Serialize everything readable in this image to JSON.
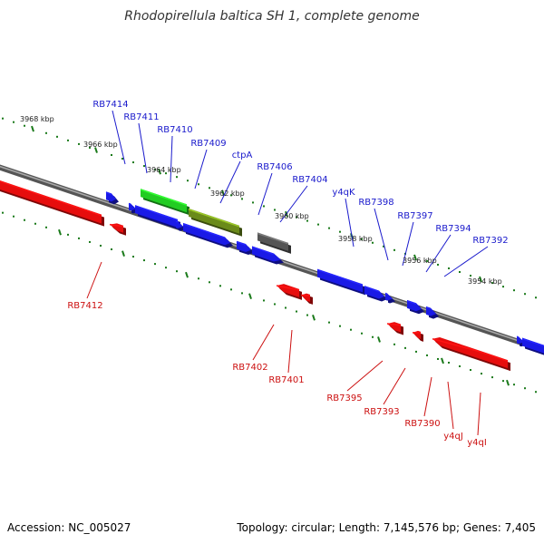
{
  "title": "Rhodopirellula baltica SH 1, complete genome",
  "footer": {
    "accession": "Accession: NC_005027",
    "summary": "Topology: circular; Length: 7,145,576 bp; Genes: 7,405"
  },
  "colors": {
    "forward": "#1a1ae6",
    "reverse": "#e60d0d",
    "label_forward": "#1a1acc",
    "label_reverse": "#cc1010",
    "green": "#22cc22",
    "olive": "#6a8a1a",
    "gray": "#555555",
    "tick": "#1a7a1a",
    "backbone": "#777777"
  },
  "scale_labels": [
    "3968 kbp",
    "3966 kbp",
    "3964 kbp",
    "3962 kbp",
    "3960 kbp",
    "3958 kbp",
    "3956 kbp",
    "3954 kbp"
  ],
  "forward_labels": [
    "RB7414",
    "RB7411",
    "RB7410",
    "RB7409",
    "ctpA",
    "RB7406",
    "RB7404",
    "y4qK",
    "RB7398",
    "RB7397",
    "RB7394",
    "RB7392"
  ],
  "reverse_labels": [
    "RB7412",
    "RB7402",
    "RB7401",
    "RB7395",
    "RB7393",
    "RB7390",
    "y4qJ",
    "y4qI"
  ]
}
